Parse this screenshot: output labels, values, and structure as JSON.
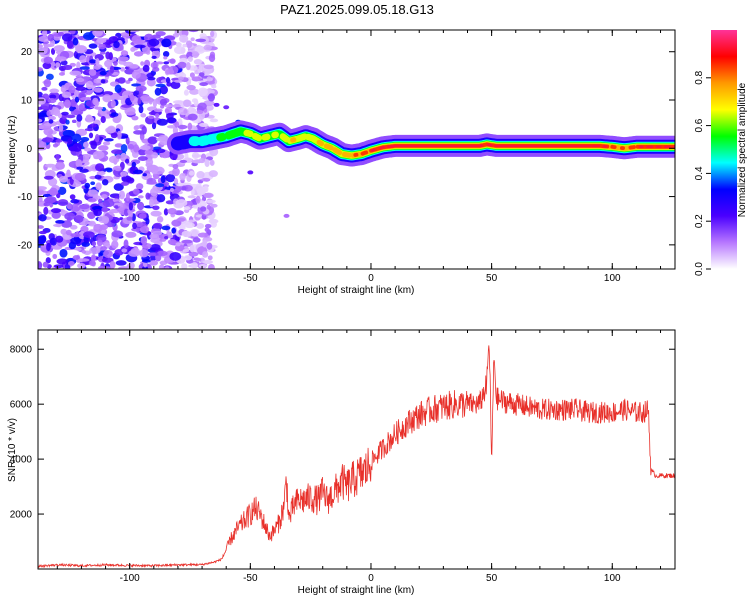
{
  "chart_data": [
    {
      "type": "heatmap",
      "title": "PAZ1.2025.099.05.18.G13",
      "xlabel": "Height of straight line (km)",
      "ylabel": "Frequency (Hz)",
      "xlim": [
        -138,
        126
      ],
      "ylim": [
        -25,
        24.5
      ],
      "x_ticks": [
        -100,
        -50,
        0,
        50,
        100
      ],
      "y_ticks": [
        -20,
        -10,
        0,
        10,
        20
      ],
      "x_tick_labels": [
        "-100",
        "-50",
        "0",
        "50",
        "100"
      ],
      "y_tick_labels": [
        "-20",
        "-10",
        "0",
        "10",
        "20"
      ],
      "colorbar": {
        "label": "Normalized spectral amplitude",
        "range": [
          0,
          1
        ],
        "ticks": [
          0.0,
          0.2,
          0.4,
          0.6,
          0.8
        ],
        "tick_labels": [
          "0.0",
          "0.2",
          "0.4",
          "0.6",
          "0.8"
        ],
        "colors": [
          "#ffffff",
          "#b777ff",
          "#4a00ff",
          "#0000ff",
          "#00ffff",
          "#00ff00",
          "#ffff00",
          "#ff9900",
          "#ff0000",
          "#ff3399"
        ]
      },
      "noise_region": {
        "x_range": [
          -138,
          -65
        ],
        "description_level": "low amplitude 0.1-0.3"
      },
      "ridge": {
        "x": [
          -80,
          -75,
          -70,
          -65,
          -60,
          -57,
          -54,
          -50,
          -46,
          -42,
          -38,
          -34,
          -30,
          -27,
          -24,
          -20,
          -16,
          -12,
          -8,
          -4,
          0,
          5,
          10,
          20,
          30,
          40,
          45,
          48,
          52,
          60,
          70,
          80,
          90,
          95,
          100,
          105,
          110,
          115,
          120,
          126
        ],
        "y": [
          1.0,
          1.5,
          1.5,
          2.0,
          2.5,
          3.0,
          3.5,
          3.0,
          2.0,
          2.5,
          3.0,
          1.5,
          2.0,
          2.5,
          2.0,
          0.8,
          0.0,
          -1.2,
          -1.5,
          -1.2,
          -0.5,
          0.2,
          0.5,
          0.5,
          0.5,
          0.5,
          0.5,
          0.8,
          0.5,
          0.5,
          0.5,
          0.5,
          0.5,
          0.5,
          0.3,
          0.0,
          0.3,
          0.3,
          0.3,
          0.3
        ],
        "amplitude": [
          0.3,
          0.4,
          0.45,
          0.5,
          0.55,
          0.6,
          0.6,
          0.65,
          0.65,
          0.6,
          0.6,
          0.7,
          0.7,
          0.7,
          0.7,
          0.75,
          0.8,
          0.75,
          0.8,
          0.85,
          0.9,
          0.95,
          1.0,
          1.0,
          1.0,
          1.0,
          1.0,
          0.9,
          1.0,
          1.0,
          1.0,
          1.0,
          1.0,
          0.95,
          0.85,
          0.8,
          0.9,
          0.95,
          0.95,
          0.95
        ]
      }
    },
    {
      "type": "line",
      "xlabel": "Height of straight line (km)",
      "ylabel": "SNR (10 * v/v)",
      "xlim": [
        -138,
        126
      ],
      "ylim": [
        0,
        8700
      ],
      "x_ticks": [
        -100,
        -50,
        0,
        50,
        100
      ],
      "y_ticks": [
        2000,
        4000,
        6000,
        8000
      ],
      "x_tick_labels": [
        "-100",
        "-50",
        "0",
        "50",
        "100"
      ],
      "y_tick_labels": [
        "2000",
        "4000",
        "6000",
        "8000"
      ],
      "color": "#e8302a",
      "series": [
        {
          "x": [
            -138,
            -130,
            -120,
            -110,
            -100,
            -90,
            -80,
            -70,
            -65,
            -62,
            -60,
            -58,
            -55,
            -52,
            -50,
            -48,
            -46,
            -44,
            -42,
            -40,
            -38,
            -36,
            -35,
            -34,
            -32,
            -30,
            -28,
            -25,
            -22,
            -20,
            -18,
            -15,
            -12,
            -10,
            -8,
            -5,
            -2,
            0,
            5,
            10,
            15,
            20,
            25,
            30,
            35,
            40,
            45,
            48,
            49,
            50,
            51,
            52,
            55,
            60,
            65,
            70,
            75,
            80,
            85,
            90,
            95,
            100,
            105,
            110,
            113,
            115,
            116,
            118,
            120,
            126
          ],
          "y": [
            100,
            150,
            120,
            150,
            130,
            120,
            150,
            160,
            250,
            350,
            700,
            1100,
            1500,
            1800,
            2000,
            2200,
            2000,
            1600,
            1200,
            1400,
            1700,
            2300,
            3300,
            1800,
            2300,
            2500,
            2500,
            2600,
            2500,
            2800,
            2500,
            2800,
            3200,
            3000,
            3200,
            3400,
            3600,
            3900,
            4400,
            4900,
            5300,
            5600,
            5800,
            5900,
            6000,
            6000,
            6000,
            6700,
            8400,
            3800,
            7800,
            6200,
            6100,
            6000,
            5900,
            5800,
            5800,
            5800,
            5800,
            5700,
            5700,
            5700,
            5800,
            5700,
            5700,
            5800,
            3600,
            3400,
            3400,
            3400
          ]
        }
      ]
    }
  ]
}
